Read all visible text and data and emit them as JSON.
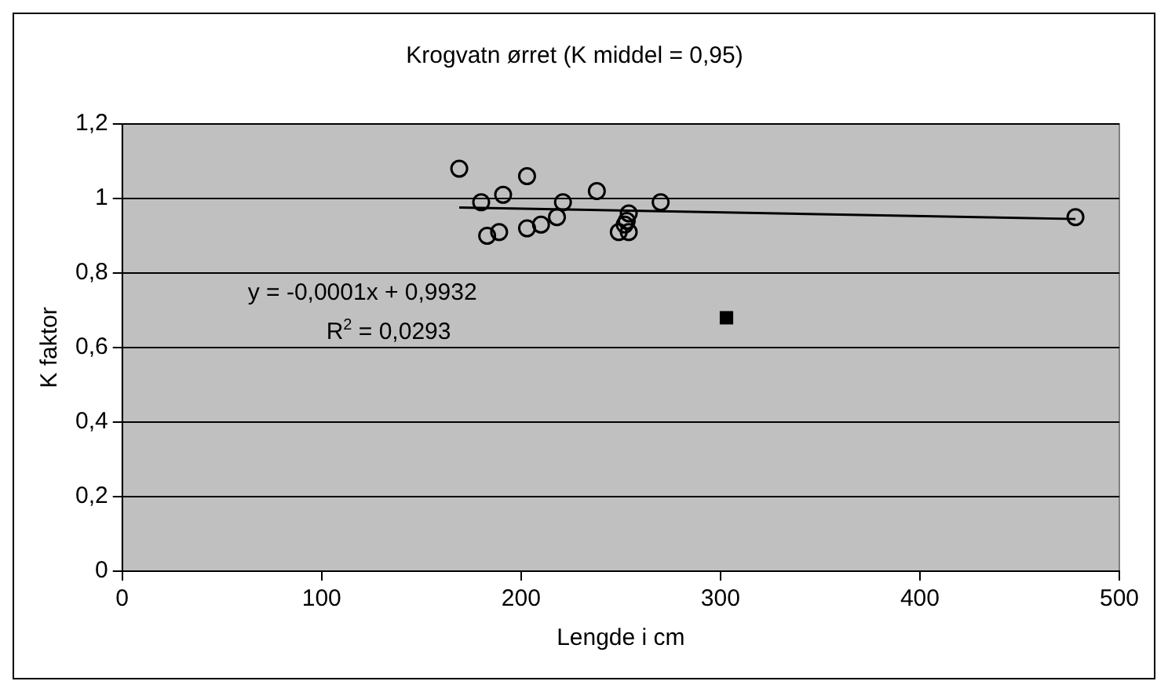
{
  "chart_data": {
    "type": "scatter",
    "title": "Krogvatn ørret (K middel = 0,95)",
    "xlabel": "Lengde i cm",
    "ylabel": "K faktor",
    "xlim": [
      0,
      500
    ],
    "xticks": [
      0,
      100,
      200,
      300,
      400,
      500
    ],
    "ylim": [
      0,
      1.2
    ],
    "yticks": [
      {
        "value": 0,
        "label": "0"
      },
      {
        "value": 0.2,
        "label": "0,2"
      },
      {
        "value": 0.4,
        "label": "0,4"
      },
      {
        "value": 0.6,
        "label": "0,6"
      },
      {
        "value": 0.8,
        "label": "0,8"
      },
      {
        "value": 1,
        "label": "1"
      },
      {
        "value": 1.2,
        "label": "1,2"
      }
    ],
    "grid": "y",
    "legend": false,
    "series": [
      {
        "marker": "circle",
        "color": "#000000",
        "x": [
          169,
          203,
          191,
          180,
          238,
          270,
          221,
          218,
          210,
          203,
          189,
          183,
          254,
          253,
          249,
          254,
          252,
          478
        ],
        "values": [
          1.08,
          1.06,
          1.01,
          0.99,
          1.02,
          0.99,
          0.99,
          0.95,
          0.93,
          0.92,
          0.91,
          0.9,
          0.96,
          0.94,
          0.91,
          0.91,
          0.93,
          0.95
        ]
      },
      {
        "marker": "square",
        "color": "#000000",
        "x": [
          303
        ],
        "values": [
          0.68
        ]
      },
      {
        "type": "line",
        "marker": "none",
        "color": "#000000",
        "x": [
          169,
          478
        ],
        "values": [
          0.976,
          0.945
        ]
      }
    ],
    "annotations": [
      "y = -0,0001x + 0,9932",
      "R$^{2}$ = 0,0293"
    ]
  }
}
